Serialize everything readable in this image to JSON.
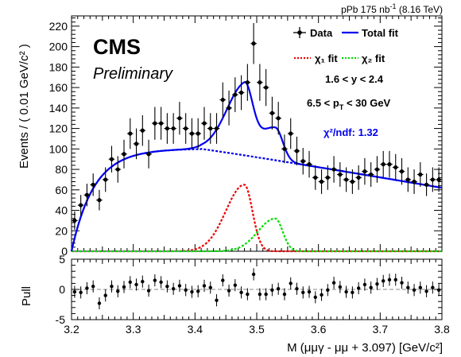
{
  "header": {
    "right_text": "pPb 175 nb",
    "right_sup": "-1",
    "right_tail": " (8.16 TeV)"
  },
  "logo": {
    "cms": "CMS",
    "preliminary": "Preliminary"
  },
  "annotations": {
    "rapidity": "1.6 < y < 2.4",
    "pt_prefix": "6.5 < p",
    "pt_sub": "T",
    "pt_suffix": " < 30 GeV",
    "chi2": "χ²/ndf: 1.32"
  },
  "colors": {
    "data": "#000000",
    "total_fit": "#0000ee",
    "chi1": "#ee0000",
    "chi2": "#00dd00",
    "background": "#0000ee"
  },
  "chart_data": [
    {
      "type": "scatter",
      "panel": "main",
      "ylabel": "Events / ( 0.01 GeV/c² )",
      "xlim": [
        3.2,
        3.8
      ],
      "ylim": [
        0,
        230
      ],
      "yticks": [
        0,
        20,
        40,
        60,
        80,
        100,
        120,
        140,
        160,
        180,
        200,
        220
      ],
      "xticks": [
        3.2,
        3.3,
        3.4,
        3.5,
        3.6,
        3.7,
        3.8
      ],
      "legend": [
        {
          "name": "Data",
          "style": "points"
        },
        {
          "name": "Total fit",
          "style": "solid-blue"
        },
        {
          "name": "χ₁ fit",
          "style": "dotted-red"
        },
        {
          "name": "χ₂ fit",
          "style": "dotted-green"
        }
      ],
      "series": [
        {
          "name": "Data",
          "x": [
            3.205,
            3.215,
            3.225,
            3.235,
            3.245,
            3.255,
            3.265,
            3.275,
            3.285,
            3.295,
            3.305,
            3.315,
            3.325,
            3.335,
            3.345,
            3.355,
            3.365,
            3.375,
            3.385,
            3.395,
            3.405,
            3.415,
            3.425,
            3.435,
            3.445,
            3.455,
            3.465,
            3.475,
            3.485,
            3.495,
            3.505,
            3.515,
            3.525,
            3.535,
            3.545,
            3.555,
            3.565,
            3.575,
            3.585,
            3.595,
            3.605,
            3.615,
            3.625,
            3.635,
            3.645,
            3.655,
            3.665,
            3.675,
            3.685,
            3.695,
            3.705,
            3.715,
            3.725,
            3.735,
            3.745,
            3.755,
            3.765,
            3.775,
            3.785,
            3.795
          ],
          "y": [
            30,
            45,
            55,
            65,
            50,
            70,
            90,
            80,
            95,
            115,
            105,
            118,
            95,
            125,
            125,
            120,
            120,
            130,
            120,
            115,
            115,
            125,
            120,
            120,
            148,
            140,
            153,
            155,
            165,
            203,
            165,
            160,
            135,
            130,
            100,
            115,
            98,
            88,
            85,
            72,
            68,
            72,
            80,
            75,
            70,
            68,
            72,
            78,
            75,
            80,
            85,
            85,
            82,
            78,
            70,
            68,
            75,
            65,
            70,
            70
          ],
          "err": [
            9,
            10,
            11,
            11,
            10,
            12,
            13,
            13,
            14,
            15,
            15,
            15,
            14,
            16,
            16,
            15,
            15,
            16,
            15,
            15,
            15,
            16,
            15,
            15,
            17,
            17,
            17,
            17,
            18,
            20,
            18,
            18,
            16,
            16,
            14,
            15,
            14,
            13,
            13,
            12,
            12,
            12,
            13,
            12,
            12,
            12,
            12,
            13,
            12,
            13,
            13,
            13,
            13,
            13,
            12,
            12,
            12,
            11,
            12,
            12
          ]
        }
      ]
    },
    {
      "type": "scatter",
      "panel": "pull",
      "ylabel": "Pull",
      "xlabel": "M (μμγ - μμ + 3.097) [GeV/c²]",
      "xlim": [
        3.2,
        3.8
      ],
      "ylim": [
        -5,
        5
      ],
      "yticks": [
        -5,
        0,
        5
      ],
      "xticks": [
        3.2,
        3.3,
        3.4,
        3.5,
        3.6,
        3.7,
        3.8
      ],
      "series": [
        {
          "name": "Pull",
          "x": [
            3.205,
            3.215,
            3.225,
            3.235,
            3.245,
            3.255,
            3.265,
            3.275,
            3.285,
            3.295,
            3.305,
            3.315,
            3.325,
            3.335,
            3.345,
            3.355,
            3.365,
            3.375,
            3.385,
            3.395,
            3.405,
            3.415,
            3.425,
            3.435,
            3.445,
            3.455,
            3.465,
            3.475,
            3.485,
            3.495,
            3.505,
            3.515,
            3.525,
            3.535,
            3.545,
            3.555,
            3.565,
            3.575,
            3.585,
            3.595,
            3.605,
            3.615,
            3.625,
            3.635,
            3.645,
            3.655,
            3.665,
            3.675,
            3.685,
            3.695,
            3.705,
            3.715,
            3.725,
            3.735,
            3.745,
            3.755,
            3.765,
            3.775,
            3.785,
            3.795
          ],
          "y": [
            -0.4,
            -0.5,
            0.2,
            0.5,
            -2.3,
            -1,
            0.5,
            -0.3,
            0.4,
            1.2,
            0.8,
            1.3,
            -0.2,
            1.5,
            1.2,
            0.5,
            0.1,
            0.6,
            -0.1,
            -0.4,
            -0.3,
            0.6,
            0.3,
            -1.8,
            1.5,
            -0.2,
            0.7,
            -0.5,
            -0.8,
            2.5,
            -0.8,
            -0.8,
            -0.1,
            0.1,
            -0.8,
            1,
            0.1,
            -0.5,
            -0.4,
            -1.3,
            -0.9,
            -0.1,
            1.1,
            0.4,
            -0.4,
            -0.5,
            0.2,
            0.8,
            0.3,
            0.9,
            1.4,
            1.6,
            1.6,
            1.1,
            0.3,
            -0.1,
            0.3,
            -0.3,
            0.3,
            -0.1
          ],
          "err": [
            1,
            1,
            1,
            1,
            1,
            1,
            1,
            1,
            1,
            1,
            1,
            1,
            1,
            1,
            1,
            1,
            1,
            1,
            1,
            1,
            1,
            1,
            1,
            1,
            1,
            1,
            1,
            1,
            1,
            1,
            1,
            1,
            1,
            1,
            1,
            1,
            1,
            1,
            1,
            1,
            1,
            1,
            1,
            1,
            1,
            1,
            1,
            1,
            1,
            1,
            1,
            1,
            1,
            1,
            1,
            1,
            1,
            1,
            1,
            1
          ]
        }
      ]
    }
  ]
}
